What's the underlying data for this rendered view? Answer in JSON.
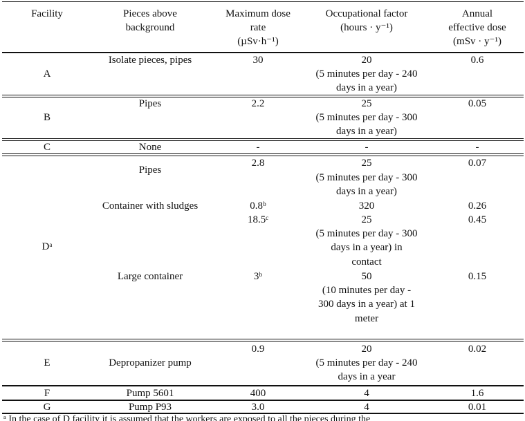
{
  "table": {
    "header": [
      [
        "Facility"
      ],
      [
        "Pieces  above",
        "background"
      ],
      [
        "Maximum dose",
        "rate",
        "(µSv·h⁻¹)"
      ],
      [
        "Occupational factor",
        "(hours · y⁻¹)"
      ],
      [
        "Annual",
        "effective dose",
        "(mSv · y⁻¹)"
      ]
    ],
    "rows": [
      [
        [
          "A"
        ],
        [
          "Isolate pieces, pipes"
        ],
        [
          "30"
        ],
        [
          "20",
          "(5 minutes per day - 240",
          "days in a year)"
        ],
        [
          "0.6"
        ]
      ],
      [
        [
          "B"
        ],
        [
          "Pipes"
        ],
        [
          "2.2"
        ],
        [
          "25",
          "(5 minutes per day - 300",
          "days in a year)"
        ],
        [
          "0.05"
        ]
      ],
      [
        [
          "C"
        ],
        [
          "None"
        ],
        [
          "-"
        ],
        [
          "-"
        ],
        [
          "-"
        ]
      ],
      [
        [
          "Dᵃ"
        ],
        [
          "Pipes",
          "Container with sludges",
          "Large container"
        ],
        [
          "2.8",
          "0.8ᵇ",
          "18.5ᶜ",
          "3ᵇ"
        ],
        [
          "25",
          "(5 minutes per day - 300",
          "days in a year)",
          "320",
          "25",
          "(5 minutes per day - 300",
          "days in a year) in",
          "contact",
          "50",
          "(10 minutes per day -",
          "300 days in a year) at 1",
          "meter"
        ],
        [
          "0.07",
          "0.26",
          "0.45",
          "0.15"
        ]
      ],
      [
        [
          "E"
        ],
        [
          "Depropanizer pump"
        ],
        [
          "0.9"
        ],
        [
          "20",
          "(5 minutes per day - 240",
          "days in a year"
        ],
        [
          "0.02"
        ]
      ],
      [
        [
          "F"
        ],
        [
          "Pump 5601"
        ],
        [
          "400"
        ],
        [
          "4"
        ],
        [
          "1.6"
        ]
      ],
      [
        [
          "G"
        ],
        [
          "Pump P93"
        ],
        [
          "3.0"
        ],
        [
          "4"
        ],
        [
          "0.01"
        ]
      ]
    ],
    "footnote": "ᵃ In the case of D facility it is assumed that the workers are exposed to all the pieces during the"
  }
}
